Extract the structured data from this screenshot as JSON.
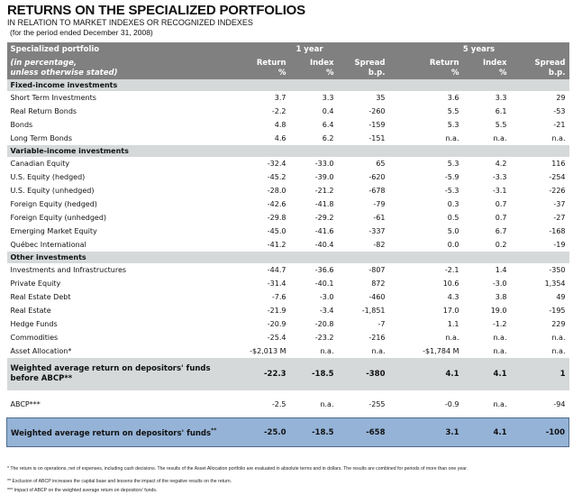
{
  "title": "RETURNS ON THE SPECIALIZED PORTFOLIOS",
  "subtitle": "IN RELATION TO MARKET INDEXES OR RECOGNIZED INDEXES",
  "period": "(for the period ended December 31, 2008)",
  "header": {
    "col_label": "Specialized portfolio",
    "group_1y": "1 year",
    "group_5y": "5 years",
    "row_label": "(in percentage,\nunless otherwise stated)",
    "return": "Return\n%",
    "index": "Index\n%",
    "spread": "Spread\nb.p."
  },
  "sections": [
    {
      "name": "Fixed-income investments",
      "rows": [
        [
          "Short Term Investments",
          "3.7",
          "3.3",
          "35",
          "3.6",
          "3.3",
          "29"
        ],
        [
          "Real Return Bonds",
          "-2.2",
          "0.4",
          "-260",
          "5.5",
          "6.1",
          "-53"
        ],
        [
          "Bonds",
          "4.8",
          "6.4",
          "-159",
          "5.3",
          "5.5",
          "-21"
        ],
        [
          "Long Term Bonds",
          "4.6",
          "6.2",
          "-151",
          "n.a.",
          "n.a.",
          "n.a."
        ]
      ]
    },
    {
      "name": "Variable-income investments",
      "rows": [
        [
          "Canadian Equity",
          "-32.4",
          "-33.0",
          "65",
          "5.3",
          "4.2",
          "116"
        ],
        [
          "U.S. Equity (hedged)",
          "-45.2",
          "-39.0",
          "-620",
          "-5.9",
          "-3.3",
          "-254"
        ],
        [
          "U.S. Equity (unhedged)",
          "-28.0",
          "-21.2",
          "-678",
          "-5.3",
          "-3.1",
          "-226"
        ],
        [
          "Foreign Equity (hedged)",
          "-42.6",
          "-41.8",
          "-79",
          "0.3",
          "0.7",
          "-37"
        ],
        [
          "Foreign Equity (unhedged)",
          "-29.8",
          "-29.2",
          "-61",
          "0.5",
          "0.7",
          "-27"
        ],
        [
          "Emerging Market Equity",
          "-45.0",
          "-41.6",
          "-337",
          "5.0",
          "6.7",
          "-168"
        ],
        [
          "Québec International",
          "-41.2",
          "-40.4",
          "-82",
          "0.0",
          "0.2",
          "-19"
        ]
      ]
    },
    {
      "name": "Other investments",
      "rows": [
        [
          "Investments and Infrastructures",
          "-44.7",
          "-36.6",
          "-807",
          "-2.1",
          "1.4",
          "-350"
        ],
        [
          "Private Equity",
          "-31.4",
          "-40.1",
          "872",
          "10.6",
          "-3.0",
          "1,354"
        ],
        [
          "Real Estate Debt",
          "-7.6",
          "-3.0",
          "-460",
          "4.3",
          "3.8",
          "49"
        ],
        [
          "Real Estate",
          "-21.9",
          "-3.4",
          "-1,851",
          "17.0",
          "19.0",
          "-195"
        ],
        [
          "Hedge Funds",
          "-20.9",
          "-20.8",
          "-7",
          "1.1",
          "-1.2",
          "229"
        ],
        [
          "Commodities",
          "-25.4",
          "-23.2",
          "-216",
          "n.a.",
          "n.a.",
          "n.a."
        ],
        [
          "Asset Allocation*",
          "-$2,013 M",
          "n.a.",
          "n.a.",
          "-$1,784 M",
          "n.a.",
          "n.a."
        ]
      ]
    }
  ],
  "weighted_before": [
    "Weighted average return on depositors' funds before ABCP**",
    "-22.3",
    "-18.5",
    "-380",
    "4.1",
    "4.1",
    "1"
  ],
  "abcp": [
    "ABCP***",
    "-2.5",
    "n.a.",
    "-255",
    "-0.9",
    "n.a.",
    "-94"
  ],
  "weighted_total": [
    "Weighted average return on depositors' funds",
    "-25.0",
    "-18.5",
    "-658",
    "3.1",
    "4.1",
    "-100"
  ],
  "weighted_total_sup": "**",
  "footnotes": [
    "* The return is on operations, net of expenses, including cash decisions. The results of the Asset Allocation portfolio are evaluated in absolute terms and in dollars. The results are combined for periods of more than one year.",
    "** Exclusion of ABCP increases the capital base and lessens the impact of the negative results on the return.",
    "*** Impact of ABCP on the weighted average return on depositors' funds."
  ]
}
